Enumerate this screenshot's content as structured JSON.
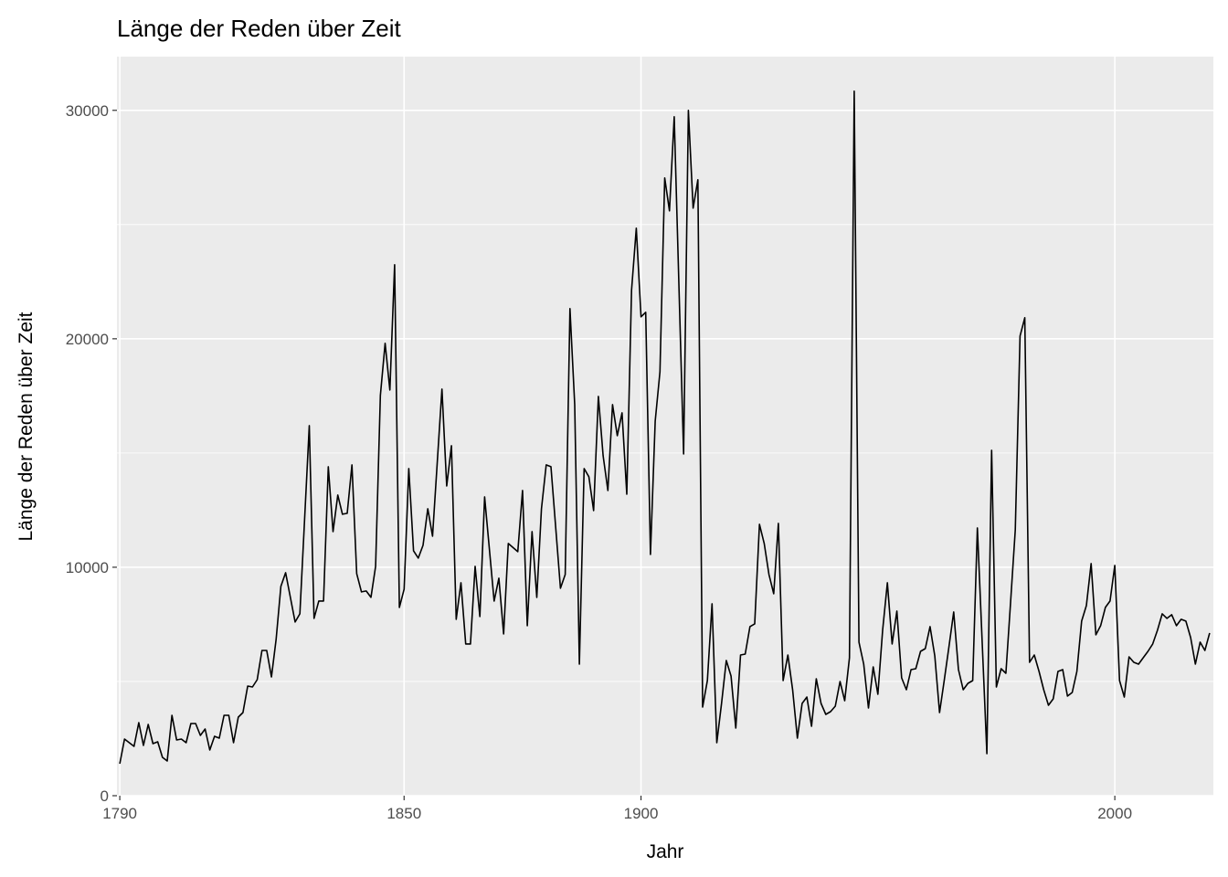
{
  "chart_data": {
    "type": "line",
    "title": "Länge der Reden über Zeit",
    "xlabel": "Jahr",
    "ylabel": "Länge der Reden über Zeit",
    "xlim": [
      1789.4,
      2020.8
    ],
    "ylim": [
      0,
      32350
    ],
    "x_ticks": [
      1790,
      1850,
      1900,
      2000
    ],
    "x_tick_labels": [
      "1790",
      "1850",
      "1900",
      "2000"
    ],
    "y_ticks": [
      0,
      10000,
      20000,
      30000
    ],
    "y_tick_labels": [
      "0",
      "10000",
      "20000",
      "30000"
    ],
    "y_minor": [
      5000,
      15000,
      25000
    ],
    "grid": true,
    "legend": "none",
    "colors": {
      "panel": "#ebebeb",
      "grid": "#ffffff",
      "line": "#000000"
    },
    "series": [
      {
        "name": "length",
        "points": [
          [
            1790,
            1400
          ],
          [
            1791,
            2480
          ],
          [
            1793,
            2160
          ],
          [
            1794,
            3200
          ],
          [
            1795,
            2200
          ],
          [
            1796,
            3120
          ],
          [
            1797,
            2280
          ],
          [
            1798,
            2360
          ],
          [
            1799,
            1680
          ],
          [
            1800,
            1520
          ],
          [
            1801,
            3520
          ],
          [
            1802,
            2440
          ],
          [
            1803,
            2480
          ],
          [
            1804,
            2320
          ],
          [
            1805,
            3160
          ],
          [
            1806,
            3160
          ],
          [
            1807,
            2640
          ],
          [
            1808,
            2920
          ],
          [
            1809,
            2000
          ],
          [
            1810,
            2600
          ],
          [
            1811,
            2520
          ],
          [
            1812,
            3520
          ],
          [
            1813,
            3520
          ],
          [
            1814,
            2320
          ],
          [
            1815,
            3440
          ],
          [
            1816,
            3640
          ],
          [
            1817,
            4800
          ],
          [
            1818,
            4760
          ],
          [
            1819,
            5080
          ],
          [
            1820,
            6360
          ],
          [
            1821,
            6360
          ],
          [
            1822,
            5200
          ],
          [
            1823,
            6840
          ],
          [
            1824,
            9160
          ],
          [
            1825,
            9760
          ],
          [
            1827,
            7600
          ],
          [
            1828,
            7960
          ],
          [
            1830,
            16200
          ],
          [
            1831,
            7760
          ],
          [
            1832,
            8520
          ],
          [
            1833,
            8520
          ],
          [
            1834,
            14400
          ],
          [
            1835,
            11560
          ],
          [
            1836,
            13160
          ],
          [
            1837,
            12320
          ],
          [
            1838,
            12360
          ],
          [
            1839,
            14480
          ],
          [
            1840,
            9720
          ],
          [
            1841,
            8920
          ],
          [
            1842,
            8960
          ],
          [
            1843,
            8680
          ],
          [
            1844,
            10040
          ],
          [
            1845,
            17520
          ],
          [
            1846,
            19800
          ],
          [
            1847,
            17760
          ],
          [
            1848,
            23240
          ],
          [
            1849,
            8240
          ],
          [
            1850,
            9040
          ],
          [
            1851,
            14320
          ],
          [
            1852,
            10720
          ],
          [
            1853,
            10400
          ],
          [
            1854,
            10960
          ],
          [
            1855,
            12560
          ],
          [
            1856,
            11360
          ],
          [
            1858,
            17800
          ],
          [
            1859,
            13560
          ],
          [
            1860,
            15320
          ],
          [
            1861,
            7720
          ],
          [
            1862,
            9320
          ],
          [
            1863,
            6640
          ],
          [
            1864,
            6640
          ],
          [
            1865,
            10040
          ],
          [
            1866,
            7840
          ],
          [
            1867,
            13080
          ],
          [
            1869,
            8520
          ],
          [
            1870,
            9520
          ],
          [
            1871,
            7080
          ],
          [
            1872,
            11040
          ],
          [
            1874,
            10680
          ],
          [
            1875,
            13360
          ],
          [
            1876,
            7440
          ],
          [
            1877,
            11560
          ],
          [
            1878,
            8680
          ],
          [
            1879,
            12560
          ],
          [
            1880,
            14480
          ],
          [
            1881,
            14400
          ],
          [
            1883,
            9080
          ],
          [
            1884,
            9680
          ],
          [
            1885,
            21320
          ],
          [
            1886,
            17120
          ],
          [
            1887,
            5760
          ],
          [
            1888,
            14320
          ],
          [
            1889,
            13960
          ],
          [
            1890,
            12480
          ],
          [
            1891,
            17480
          ],
          [
            1892,
            14880
          ],
          [
            1893,
            13360
          ],
          [
            1894,
            17120
          ],
          [
            1895,
            15760
          ],
          [
            1896,
            16760
          ],
          [
            1897,
            13200
          ],
          [
            1898,
            22120
          ],
          [
            1899,
            24840
          ],
          [
            1900,
            20960
          ],
          [
            1901,
            21160
          ],
          [
            1902,
            10560
          ],
          [
            1903,
            16400
          ],
          [
            1904,
            18560
          ],
          [
            1905,
            27040
          ],
          [
            1906,
            25600
          ],
          [
            1907,
            29720
          ],
          [
            1909,
            14960
          ],
          [
            1910,
            30000
          ],
          [
            1911,
            25720
          ],
          [
            1912,
            26960
          ],
          [
            1913,
            3880
          ],
          [
            1914,
            5040
          ],
          [
            1915,
            8400
          ],
          [
            1916,
            2320
          ],
          [
            1917,
            4040
          ],
          [
            1918,
            5920
          ],
          [
            1919,
            5240
          ],
          [
            1920,
            2960
          ],
          [
            1921,
            6160
          ],
          [
            1922,
            6200
          ],
          [
            1923,
            7400
          ],
          [
            1924,
            7520
          ],
          [
            1925,
            11880
          ],
          [
            1926,
            11040
          ],
          [
            1927,
            9680
          ],
          [
            1928,
            8840
          ],
          [
            1929,
            11920
          ],
          [
            1930,
            5040
          ],
          [
            1931,
            6160
          ],
          [
            1932,
            4640
          ],
          [
            1933,
            2520
          ],
          [
            1934,
            4040
          ],
          [
            1935,
            4320
          ],
          [
            1936,
            3040
          ],
          [
            1937,
            5120
          ],
          [
            1938,
            4040
          ],
          [
            1939,
            3560
          ],
          [
            1940,
            3680
          ],
          [
            1941,
            3920
          ],
          [
            1942,
            5000
          ],
          [
            1943,
            4160
          ],
          [
            1944,
            6040
          ],
          [
            1945,
            30840
          ],
          [
            1946,
            6720
          ],
          [
            1947,
            5760
          ],
          [
            1948,
            3840
          ],
          [
            1949,
            5640
          ],
          [
            1950,
            4440
          ],
          [
            1951,
            7240
          ],
          [
            1952,
            9320
          ],
          [
            1953,
            6640
          ],
          [
            1954,
            8080
          ],
          [
            1955,
            5160
          ],
          [
            1956,
            4640
          ],
          [
            1957,
            5520
          ],
          [
            1958,
            5560
          ],
          [
            1959,
            6320
          ],
          [
            1960,
            6440
          ],
          [
            1961,
            7400
          ],
          [
            1962,
            6120
          ],
          [
            1963,
            3640
          ],
          [
            1964,
            5040
          ],
          [
            1965,
            6520
          ],
          [
            1966,
            8040
          ],
          [
            1967,
            5520
          ],
          [
            1968,
            4640
          ],
          [
            1969,
            4920
          ],
          [
            1970,
            5040
          ],
          [
            1971,
            11720
          ],
          [
            1973,
            1840
          ],
          [
            1974,
            15120
          ],
          [
            1975,
            4760
          ],
          [
            1976,
            5560
          ],
          [
            1977,
            5360
          ],
          [
            1978,
            8440
          ],
          [
            1979,
            11640
          ],
          [
            1980,
            20120
          ],
          [
            1981,
            20920
          ],
          [
            1982,
            5840
          ],
          [
            1983,
            6160
          ],
          [
            1984,
            5440
          ],
          [
            1985,
            4640
          ],
          [
            1986,
            3960
          ],
          [
            1987,
            4240
          ],
          [
            1988,
            5440
          ],
          [
            1989,
            5520
          ],
          [
            1990,
            4360
          ],
          [
            1991,
            4520
          ],
          [
            1992,
            5440
          ],
          [
            1993,
            7640
          ],
          [
            1994,
            8320
          ],
          [
            1995,
            10160
          ],
          [
            1996,
            7040
          ],
          [
            1997,
            7440
          ],
          [
            1998,
            8240
          ],
          [
            1999,
            8520
          ],
          [
            2000,
            10080
          ],
          [
            2001,
            5040
          ],
          [
            2002,
            4320
          ],
          [
            2003,
            6080
          ],
          [
            2004,
            5840
          ],
          [
            2005,
            5760
          ],
          [
            2006,
            6040
          ],
          [
            2007,
            6320
          ],
          [
            2008,
            6640
          ],
          [
            2009,
            7240
          ],
          [
            2010,
            7960
          ],
          [
            2011,
            7760
          ],
          [
            2012,
            7920
          ],
          [
            2013,
            7440
          ],
          [
            2014,
            7720
          ],
          [
            2015,
            7640
          ],
          [
            2016,
            6920
          ],
          [
            2017,
            5760
          ],
          [
            2018,
            6720
          ],
          [
            2019,
            6360
          ],
          [
            2020,
            7120
          ]
        ]
      }
    ]
  }
}
